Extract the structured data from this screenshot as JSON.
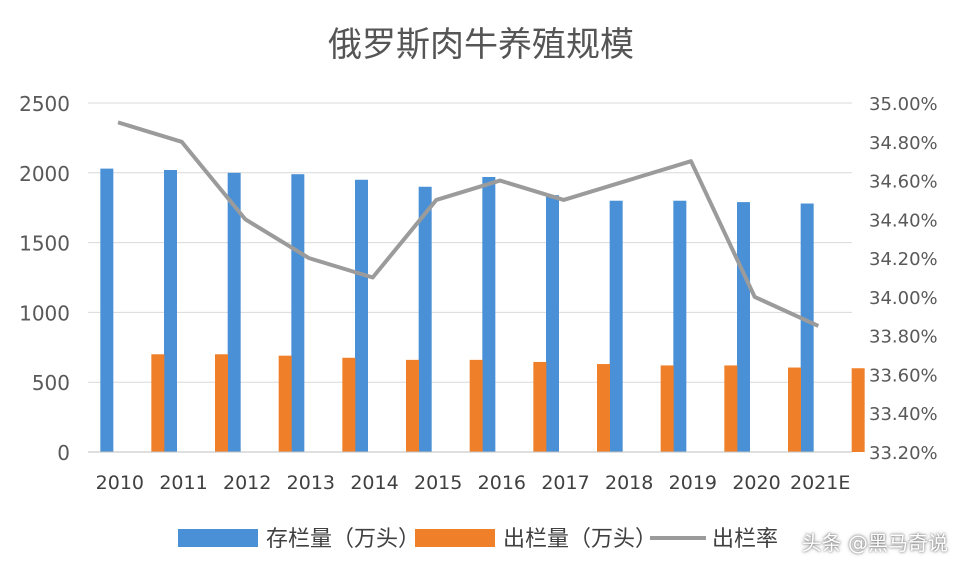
{
  "chart_data": {
    "type": "bar",
    "title": "俄罗斯肉牛养殖规模",
    "categories": [
      "2010",
      "2011",
      "2012",
      "2013",
      "2014",
      "2015",
      "2016",
      "2017",
      "2018",
      "2019",
      "2020",
      "2021E"
    ],
    "series": [
      {
        "name": "存栏量（万头）",
        "type": "bar",
        "axis": "left",
        "color": "#4a90d6",
        "values": [
          2030,
          2020,
          2000,
          1990,
          1950,
          1900,
          1970,
          1840,
          1800,
          1800,
          1790,
          1780
        ]
      },
      {
        "name": "出栏量（万头）",
        "type": "bar",
        "axis": "left",
        "color": "#f07f29",
        "values": [
          700,
          700,
          690,
          675,
          660,
          660,
          645,
          630,
          620,
          620,
          605,
          600
        ]
      },
      {
        "name": "出栏率",
        "type": "line",
        "axis": "right",
        "color": "#9b9b9b",
        "values": [
          0.349,
          0.348,
          0.344,
          0.342,
          0.341,
          0.345,
          0.346,
          0.345,
          0.346,
          0.347,
          0.34,
          0.3385
        ]
      }
    ],
    "y_left": {
      "range": [
        0,
        2500
      ],
      "ticks": [
        "0",
        "500",
        "1000",
        "1500",
        "2000",
        "2500"
      ]
    },
    "y_right": {
      "range": [
        0.332,
        0.35
      ],
      "ticks": [
        "33.20%",
        "33.40%",
        "33.60%",
        "33.80%",
        "34.00%",
        "34.20%",
        "34.40%",
        "34.60%",
        "34.80%",
        "35.00%"
      ]
    },
    "grid": "horizontal",
    "legend_position": "bottom"
  },
  "watermark": "头条 @黑马奇说"
}
